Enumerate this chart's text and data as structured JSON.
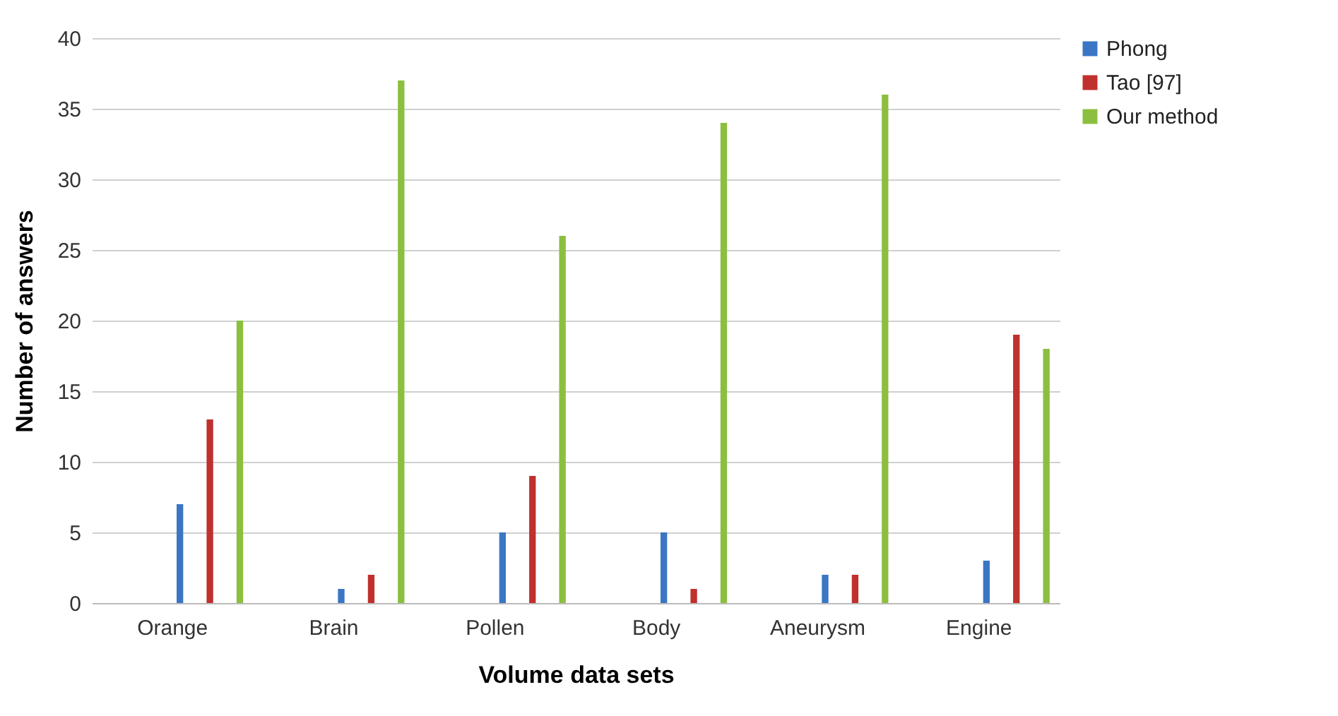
{
  "chart_data": {
    "type": "bar",
    "xlabel": "Volume data sets",
    "ylabel": "Number of answers",
    "categories": [
      "Orange",
      "Brain",
      "Pollen",
      "Body",
      "Aneurysm",
      "Engine"
    ],
    "series": [
      {
        "name": "Phong",
        "color": "#3a76c4",
        "values": [
          7,
          1,
          5,
          5,
          2,
          3
        ]
      },
      {
        "name": "Tao [97]",
        "color": "#c0302e",
        "values": [
          13,
          2,
          9,
          1,
          2,
          19
        ]
      },
      {
        "name": "Our method",
        "color": "#8cbf3f",
        "values": [
          20,
          37,
          26,
          34,
          36,
          18
        ]
      }
    ],
    "ylim": [
      0,
      40
    ],
    "yticks": [
      0,
      5,
      10,
      15,
      20,
      25,
      30,
      35,
      40
    ],
    "grid": "y",
    "legend": "right"
  }
}
